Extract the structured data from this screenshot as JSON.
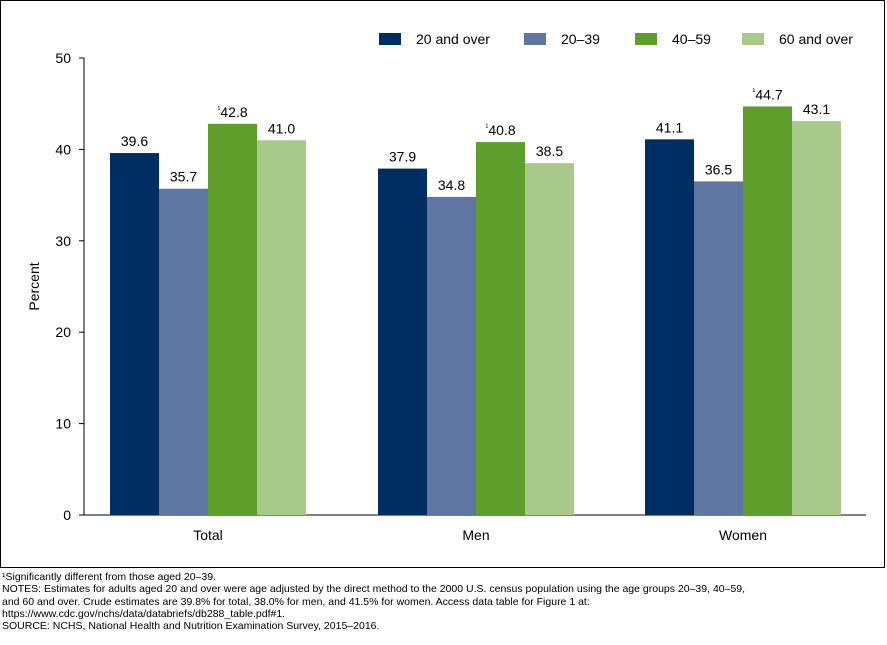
{
  "chart_data": {
    "type": "bar",
    "categories": [
      "Total",
      "Men",
      "Women"
    ],
    "series": [
      {
        "name": "20 and over",
        "color": "#002D62",
        "values": [
          39.6,
          37.9,
          41.1
        ],
        "labels": [
          "39.6",
          "37.9",
          "41.1"
        ]
      },
      {
        "name": "20–39",
        "color": "#5F76A3",
        "values": [
          35.7,
          34.8,
          36.5
        ],
        "labels": [
          "35.7",
          "34.8",
          "36.5"
        ]
      },
      {
        "name": "40–59",
        "color": "#5E9E2B",
        "values": [
          42.8,
          40.8,
          44.7
        ],
        "labels": [
          "¹42.8",
          "¹40.8",
          "¹44.7"
        ]
      },
      {
        "name": "60 and over",
        "color": "#A9C98A",
        "values": [
          41.0,
          38.5,
          43.1
        ],
        "labels": [
          "41.0",
          "38.5",
          "43.1"
        ]
      }
    ],
    "ylabel": "Percent",
    "xlabel": "",
    "ylim": [
      0,
      50
    ],
    "yticks": [
      0,
      10,
      20,
      30,
      40,
      50
    ],
    "grid": false,
    "legend_position": "top-right"
  },
  "notes": {
    "footnote": "¹Significantly different from those aged 20–39.",
    "notes_line1": "NOTES: Estimates for adults aged 20 and over were age adjusted by the direct method to the 2000 U.S. census population using the age groups 20–39, 40–59,",
    "notes_line2": "and 60 and over. Crude estimates are 39.8% for total, 38.0% for men, and 41.5% for women. Access data table for Figure 1 at:",
    "notes_line3": "https://www.cdc.gov/nchs/data/databriefs/db288_table.pdf#1.",
    "source": "SOURCE: NCHS, National Health and Nutrition Examination Survey, 2015–2016."
  }
}
